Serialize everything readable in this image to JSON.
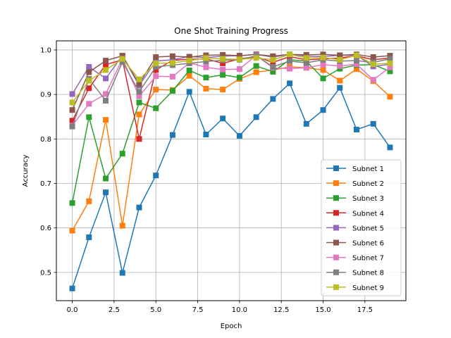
{
  "chart_data": {
    "type": "line",
    "title": "One Shot Training Progress",
    "xlabel": "Epoch",
    "ylabel": "Accuracy",
    "xlim": [
      -0.95,
      19.95
    ],
    "ylim": [
      0.4365,
      1.0205
    ],
    "xticks": [
      0,
      2.5,
      5,
      7.5,
      10,
      12.5,
      15,
      17.5
    ],
    "xtick_labels": [
      "0.0",
      "2.5",
      "5.0",
      "7.5",
      "10.0",
      "12.5",
      "15.0",
      "17.5"
    ],
    "yticks": [
      0.5,
      0.6,
      0.7,
      0.8,
      0.9,
      1.0
    ],
    "ytick_labels": [
      "0.5",
      "0.6",
      "0.7",
      "0.8",
      "0.9",
      "1.0"
    ],
    "grid": true,
    "legend_position": "lower right",
    "marker": "square",
    "x": [
      0,
      1,
      2,
      3,
      4,
      5,
      6,
      7,
      8,
      9,
      10,
      11,
      12,
      13,
      14,
      15,
      16,
      17,
      18,
      19
    ],
    "series": [
      {
        "name": "Subnet 1",
        "color": "#1f77b4",
        "values": [
          0.464,
          0.579,
          0.68,
          0.499,
          0.646,
          0.718,
          0.809,
          0.906,
          0.81,
          0.846,
          0.807,
          0.849,
          0.89,
          0.925,
          0.834,
          0.865,
          0.915,
          0.821,
          0.834,
          0.781
        ]
      },
      {
        "name": "Subnet 2",
        "color": "#ff7f0e",
        "values": [
          0.594,
          0.66,
          0.843,
          0.605,
          0.855,
          0.911,
          0.91,
          0.942,
          0.913,
          0.911,
          0.935,
          0.95,
          0.955,
          0.962,
          0.96,
          0.955,
          0.931,
          0.957,
          0.93,
          0.895
        ]
      },
      {
        "name": "Subnet 3",
        "color": "#2ca02c",
        "values": [
          0.656,
          0.849,
          0.711,
          0.767,
          0.882,
          0.869,
          0.908,
          0.954,
          0.938,
          0.944,
          0.938,
          0.964,
          0.951,
          0.978,
          0.975,
          0.936,
          0.958,
          0.966,
          0.967,
          0.952
        ]
      },
      {
        "name": "Subnet 4",
        "color": "#d62728",
        "values": [
          0.841,
          0.914,
          0.967,
          0.978,
          0.8,
          0.955,
          0.977,
          0.979,
          0.98,
          0.97,
          0.98,
          0.985,
          0.972,
          0.985,
          0.978,
          0.98,
          0.982,
          0.987,
          0.978,
          0.982
        ]
      },
      {
        "name": "Subnet 5",
        "color": "#9467bd",
        "values": [
          0.901,
          0.962,
          0.936,
          0.987,
          0.92,
          0.975,
          0.978,
          0.985,
          0.983,
          0.986,
          0.987,
          0.99,
          0.984,
          0.99,
          0.986,
          0.985,
          0.988,
          0.988,
          0.963,
          0.968
        ]
      },
      {
        "name": "Subnet 6",
        "color": "#8c564b",
        "values": [
          0.865,
          0.95,
          0.976,
          0.987,
          0.924,
          0.984,
          0.986,
          0.984,
          0.988,
          0.989,
          0.987,
          0.99,
          0.986,
          0.99,
          0.989,
          0.99,
          0.988,
          0.99,
          0.984,
          0.987
        ]
      },
      {
        "name": "Subnet 7",
        "color": "#e377c2",
        "values": [
          0.83,
          0.879,
          0.901,
          0.98,
          0.896,
          0.941,
          0.94,
          0.971,
          0.961,
          0.956,
          0.957,
          0.988,
          0.96,
          0.958,
          0.96,
          0.967,
          0.964,
          0.968,
          0.933,
          0.961
        ]
      },
      {
        "name": "Subnet 8",
        "color": "#7f7f7f",
        "values": [
          0.828,
          0.935,
          0.886,
          0.973,
          0.906,
          0.962,
          0.966,
          0.97,
          0.974,
          0.977,
          0.978,
          0.987,
          0.962,
          0.975,
          0.971,
          0.978,
          0.975,
          0.976,
          0.972,
          0.98
        ]
      },
      {
        "name": "Subnet 9",
        "color": "#bcbd22",
        "values": [
          0.882,
          0.931,
          0.955,
          0.98,
          0.934,
          0.97,
          0.971,
          0.976,
          0.982,
          0.98,
          0.979,
          0.982,
          0.978,
          0.99,
          0.982,
          0.983,
          0.978,
          0.988,
          0.968,
          0.97
        ]
      }
    ]
  }
}
